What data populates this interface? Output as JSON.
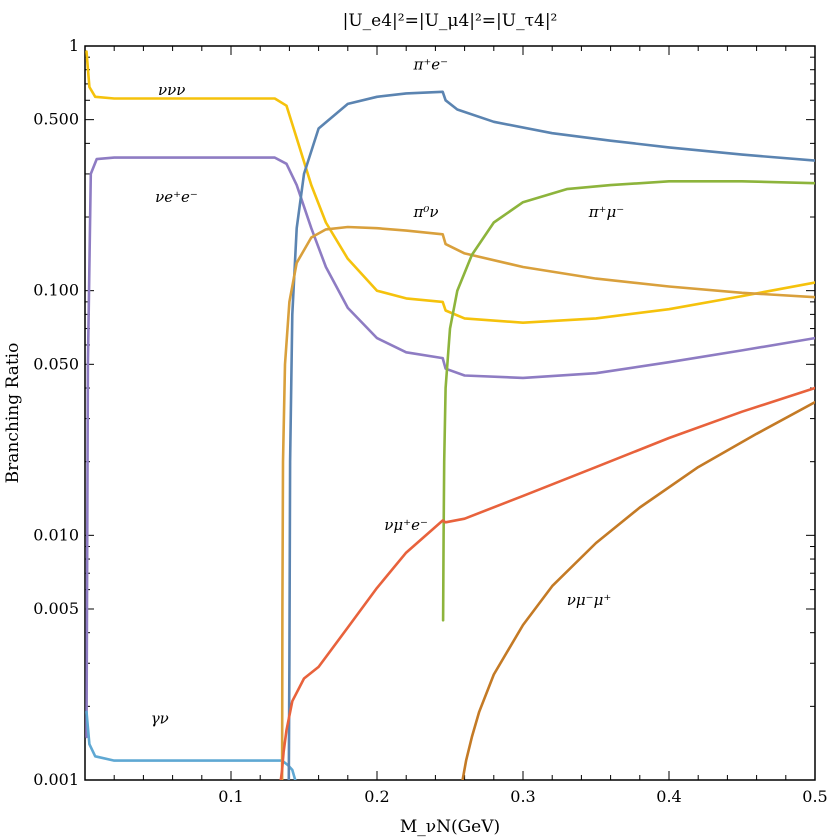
{
  "chart_data": {
    "type": "line",
    "title": "|U_e4|²=|U_μ4|²=|U_τ4|²",
    "xlabel": "M_νN(GeV)",
    "ylabel": "Branching Ratio",
    "xlim": [
      0.0,
      0.5
    ],
    "ylim": [
      0.001,
      1
    ],
    "yscale": "log",
    "grid": false,
    "legend": "none",
    "xticks": [
      {
        "value": 0.1,
        "label": "0.1"
      },
      {
        "value": 0.2,
        "label": "0.2"
      },
      {
        "value": 0.3,
        "label": "0.3"
      },
      {
        "value": 0.4,
        "label": "0.4"
      },
      {
        "value": 0.5,
        "label": "0.5"
      }
    ],
    "yticks": [
      {
        "value": 0.001,
        "label": "0.001"
      },
      {
        "value": 0.005,
        "label": "0.005"
      },
      {
        "value": 0.01,
        "label": "0.010"
      },
      {
        "value": 0.05,
        "label": "0.050"
      },
      {
        "value": 0.1,
        "label": "0.100"
      },
      {
        "value": 0.5,
        "label": "0.500"
      },
      {
        "value": 1,
        "label": "1"
      }
    ],
    "series": [
      {
        "name": "νe⁺e⁻",
        "color": "#8e7cc3",
        "x": [
          0.001,
          0.002,
          0.004,
          0.008,
          0.02,
          0.05,
          0.1,
          0.13,
          0.138,
          0.145,
          0.155,
          0.165,
          0.18,
          0.2,
          0.22,
          0.245,
          0.247,
          0.26,
          0.3,
          0.35,
          0.4,
          0.45,
          0.5
        ],
        "y": [
          0.0015,
          0.05,
          0.3,
          0.345,
          0.35,
          0.35,
          0.35,
          0.35,
          0.33,
          0.27,
          0.18,
          0.125,
          0.085,
          0.064,
          0.056,
          0.053,
          0.048,
          0.045,
          0.044,
          0.046,
          0.051,
          0.057,
          0.064
        ]
      },
      {
        "name": "ννν",
        "color": "#f5c20c",
        "x": [
          0.001,
          0.003,
          0.007,
          0.02,
          0.05,
          0.1,
          0.13,
          0.138,
          0.145,
          0.155,
          0.165,
          0.18,
          0.2,
          0.22,
          0.245,
          0.247,
          0.26,
          0.3,
          0.35,
          0.4,
          0.45,
          0.5
        ],
        "y": [
          0.95,
          0.68,
          0.62,
          0.61,
          0.61,
          0.61,
          0.61,
          0.57,
          0.42,
          0.27,
          0.19,
          0.135,
          0.1,
          0.093,
          0.09,
          0.083,
          0.077,
          0.074,
          0.077,
          0.084,
          0.095,
          0.108
        ]
      },
      {
        "name": "γν",
        "color": "#5fa8d3",
        "x": [
          0.001,
          0.003,
          0.007,
          0.02,
          0.05,
          0.1,
          0.135,
          0.139,
          0.142,
          0.144
        ],
        "y": [
          0.0019,
          0.0014,
          0.00125,
          0.0012,
          0.0012,
          0.0012,
          0.0012,
          0.00115,
          0.0011,
          0.001
        ]
      },
      {
        "name": "π⁺e⁻",
        "color": "#5b84b1",
        "x": [
          0.1396,
          0.14,
          0.1405,
          0.142,
          0.145,
          0.15,
          0.16,
          0.18,
          0.2,
          0.22,
          0.245,
          0.247,
          0.255,
          0.28,
          0.32,
          0.36,
          0.4,
          0.45,
          0.5
        ],
        "y": [
          0.001,
          0.003,
          0.02,
          0.08,
          0.18,
          0.3,
          0.46,
          0.58,
          0.62,
          0.64,
          0.65,
          0.6,
          0.55,
          0.49,
          0.44,
          0.41,
          0.385,
          0.36,
          0.34
        ]
      },
      {
        "name": "π⁰ν",
        "color": "#d9a03c",
        "x": [
          0.135,
          0.1352,
          0.1356,
          0.137,
          0.14,
          0.145,
          0.155,
          0.165,
          0.18,
          0.2,
          0.22,
          0.245,
          0.247,
          0.26,
          0.3,
          0.35,
          0.4,
          0.45,
          0.5
        ],
        "y": [
          0.001,
          0.005,
          0.02,
          0.05,
          0.09,
          0.13,
          0.165,
          0.178,
          0.182,
          0.18,
          0.176,
          0.17,
          0.155,
          0.142,
          0.125,
          0.112,
          0.104,
          0.098,
          0.094
        ]
      },
      {
        "name": "π⁺μ⁻",
        "color": "#8db43c",
        "x": [
          0.2453,
          0.2456,
          0.246,
          0.247,
          0.25,
          0.255,
          0.265,
          0.28,
          0.3,
          0.33,
          0.36,
          0.4,
          0.45,
          0.5
        ],
        "y": [
          0.0045,
          0.01,
          0.02,
          0.04,
          0.07,
          0.1,
          0.14,
          0.19,
          0.23,
          0.26,
          0.27,
          0.28,
          0.28,
          0.275
        ]
      },
      {
        "name": "νμ⁺e⁻",
        "color": "#e8623c",
        "x": [
          0.1341,
          0.135,
          0.136,
          0.138,
          0.142,
          0.15,
          0.16,
          0.18,
          0.2,
          0.22,
          0.245,
          0.247,
          0.26,
          0.3,
          0.35,
          0.4,
          0.45,
          0.5
        ],
        "y": [
          0.001,
          0.0011,
          0.0013,
          0.0016,
          0.0021,
          0.0026,
          0.0029,
          0.0042,
          0.0061,
          0.0085,
          0.0115,
          0.0113,
          0.0117,
          0.0145,
          0.019,
          0.025,
          0.032,
          0.04
        ]
      },
      {
        "name": "νμ⁻μ⁺",
        "color": "#c47a25",
        "x": [
          0.2586,
          0.261,
          0.265,
          0.27,
          0.28,
          0.3,
          0.32,
          0.35,
          0.38,
          0.42,
          0.46,
          0.5
        ],
        "y": [
          0.001,
          0.0012,
          0.0015,
          0.0019,
          0.0027,
          0.0043,
          0.0062,
          0.0093,
          0.013,
          0.019,
          0.026,
          0.035
        ]
      }
    ],
    "annotations": [
      {
        "text": "ννν",
        "x": 0.05,
        "y": 0.63
      },
      {
        "text": "νe⁺e⁻",
        "x": 0.048,
        "y": 0.23
      },
      {
        "text": "π⁺e⁻",
        "x": 0.225,
        "y": 0.8
      },
      {
        "text": "π⁰ν",
        "x": 0.225,
        "y": 0.2
      },
      {
        "text": "π⁺μ⁻",
        "x": 0.345,
        "y": 0.2
      },
      {
        "text": "νμ⁺e⁻",
        "x": 0.205,
        "y": 0.0105
      },
      {
        "text": "νμ⁻μ⁺",
        "x": 0.33,
        "y": 0.0052
      },
      {
        "text": "γν",
        "x": 0.045,
        "y": 0.0017
      }
    ]
  }
}
